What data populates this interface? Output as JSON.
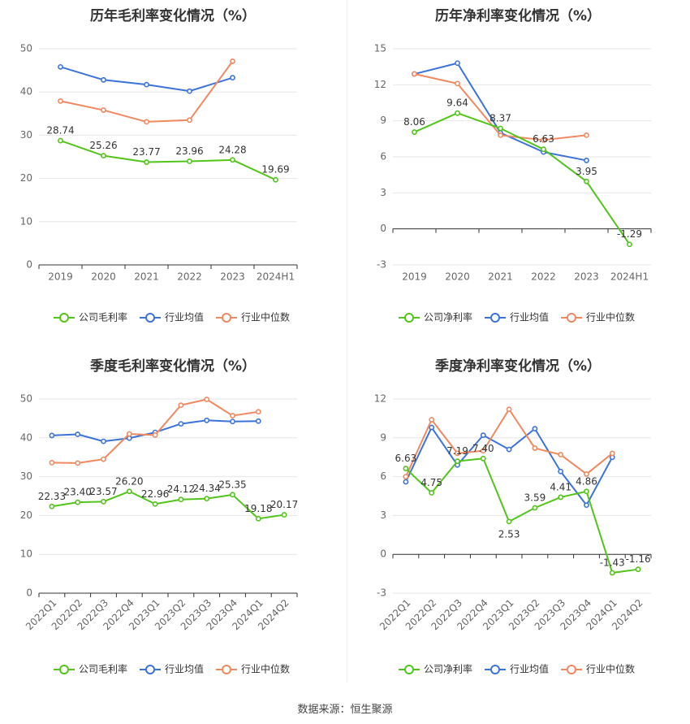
{
  "source": "数据来源：恒生聚源",
  "colors": {
    "company": "#52c41a",
    "avg": "#3b73d9",
    "median": "#f08860",
    "grid": "#e6e6e6",
    "axis": "#333333"
  },
  "chart_data": [
    {
      "type": "line",
      "title": "历年毛利率变化情况（%）",
      "categories": [
        "2019",
        "2020",
        "2021",
        "2022",
        "2023",
        "2024H1"
      ],
      "ylim": [
        0,
        50
      ],
      "yticks": [
        0,
        10,
        20,
        30,
        40,
        50
      ],
      "grid": true,
      "legend": "bottom",
      "series": [
        {
          "name": "公司毛利率",
          "key": "company",
          "values": [
            28.74,
            25.26,
            23.77,
            23.96,
            24.28,
            19.69
          ],
          "labels": [
            "28.74",
            "25.26",
            "23.77",
            "23.96",
            "24.28",
            "19.69"
          ]
        },
        {
          "name": "行业均值",
          "key": "avg",
          "values": [
            45.8,
            42.8,
            41.7,
            40.2,
            43.3,
            null
          ]
        },
        {
          "name": "行业中位数",
          "key": "median",
          "values": [
            37.9,
            35.8,
            33.1,
            33.5,
            47.1,
            null
          ]
        }
      ]
    },
    {
      "type": "line",
      "title": "历年净利率变化情况（%）",
      "categories": [
        "2019",
        "2020",
        "2021",
        "2022",
        "2023",
        "2024H1"
      ],
      "ylim": [
        -3,
        15
      ],
      "yticks": [
        -3,
        0,
        3,
        6,
        9,
        12,
        15
      ],
      "grid": true,
      "legend": "bottom",
      "series": [
        {
          "name": "公司净利率",
          "key": "company",
          "values": [
            8.06,
            9.64,
            8.37,
            6.63,
            3.95,
            -1.29
          ],
          "labels": [
            "8.06",
            "9.64",
            "8.37",
            "6.63",
            "3.95",
            "-1.29"
          ]
        },
        {
          "name": "行业均值",
          "key": "avg",
          "values": [
            12.9,
            13.8,
            8.0,
            6.4,
            5.7,
            null
          ]
        },
        {
          "name": "行业中位数",
          "key": "median",
          "values": [
            12.9,
            12.1,
            7.8,
            7.4,
            7.8,
            null
          ]
        }
      ]
    },
    {
      "type": "line",
      "title": "季度毛利率变化情况（%）",
      "categories": [
        "2022Q1",
        "2022Q2",
        "2022Q3",
        "2022Q4",
        "2023Q1",
        "2023Q2",
        "2023Q3",
        "2023Q4",
        "2024Q1",
        "2024Q2"
      ],
      "ylim": [
        0,
        50
      ],
      "yticks": [
        0,
        10,
        20,
        30,
        40,
        50
      ],
      "grid": true,
      "legend": "bottom",
      "series": [
        {
          "name": "公司毛利率",
          "key": "company",
          "values": [
            22.33,
            23.4,
            23.57,
            26.2,
            22.96,
            24.12,
            24.34,
            25.35,
            19.18,
            20.17
          ],
          "labels": [
            "22.33",
            "23.40",
            "23.57",
            "26.20",
            "22.96",
            "24.12",
            "24.34",
            "25.35",
            "19.18",
            "20.17"
          ]
        },
        {
          "name": "行业均值",
          "key": "avg",
          "values": [
            40.6,
            40.9,
            39.1,
            39.9,
            41.4,
            43.6,
            44.5,
            44.2,
            44.3,
            null
          ]
        },
        {
          "name": "行业中位数",
          "key": "median",
          "values": [
            33.6,
            33.5,
            34.5,
            41.0,
            40.7,
            48.4,
            49.9,
            45.7,
            46.7,
            null
          ]
        }
      ]
    },
    {
      "type": "line",
      "title": "季度净利率变化情况（%）",
      "categories": [
        "2022Q1",
        "2022Q2",
        "2022Q3",
        "2022Q4",
        "2023Q1",
        "2023Q2",
        "2023Q3",
        "2023Q4",
        "2024Q1",
        "2024Q2"
      ],
      "ylim": [
        -3,
        12
      ],
      "yticks": [
        -3,
        0,
        3,
        6,
        9,
        12
      ],
      "grid": true,
      "legend": "bottom",
      "series": [
        {
          "name": "公司净利率",
          "key": "company",
          "values": [
            6.63,
            4.75,
            7.19,
            7.4,
            2.53,
            3.59,
            4.41,
            4.86,
            -1.43,
            -1.16
          ],
          "labels": [
            "6.63",
            "4.75",
            "7.19",
            "7.40",
            "2.53",
            "3.59",
            "4.41",
            "4.86",
            "-1.43",
            "-1.16"
          ]
        },
        {
          "name": "行业均值",
          "key": "avg",
          "values": [
            5.6,
            9.8,
            6.9,
            9.2,
            8.1,
            9.7,
            6.4,
            3.8,
            7.5,
            null
          ]
        },
        {
          "name": "行业中位数",
          "key": "median",
          "values": [
            6.0,
            10.4,
            7.8,
            8.0,
            11.2,
            8.2,
            7.7,
            6.2,
            7.8,
            null
          ]
        }
      ]
    }
  ]
}
